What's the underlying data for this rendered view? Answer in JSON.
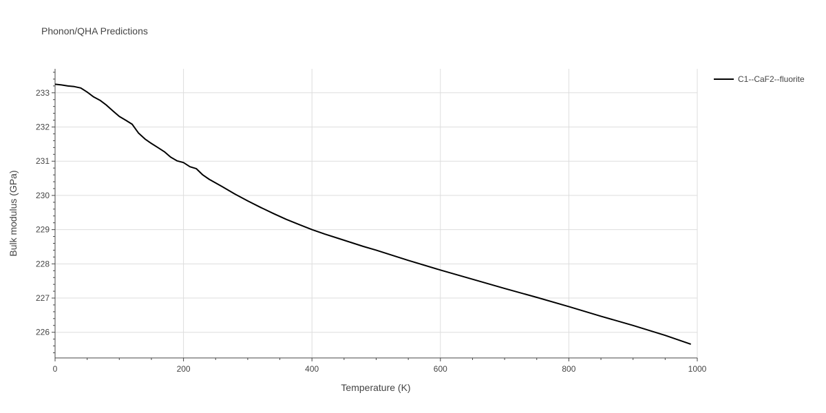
{
  "chart_data": {
    "type": "line",
    "title": "Phonon/QHA Predictions",
    "xlabel": "Temperature (K)",
    "ylabel": "Bulk modulus (GPa)",
    "xlim": [
      0,
      1000
    ],
    "ylim": [
      225.25,
      233.7
    ],
    "x_ticks": [
      0,
      200,
      400,
      600,
      800,
      1000
    ],
    "y_ticks": [
      226,
      227,
      228,
      229,
      230,
      231,
      232,
      233
    ],
    "grid": true,
    "legend_position": "top-right",
    "series": [
      {
        "name": "C1--CaF2--fluorite",
        "color": "#000000",
        "x": [
          0,
          10,
          20,
          30,
          40,
          50,
          60,
          70,
          80,
          90,
          100,
          110,
          120,
          130,
          140,
          150,
          160,
          170,
          180,
          190,
          200,
          210,
          220,
          230,
          240,
          260,
          280,
          300,
          320,
          340,
          360,
          380,
          400,
          420,
          440,
          460,
          480,
          500,
          550,
          600,
          650,
          700,
          750,
          800,
          850,
          900,
          950,
          990
        ],
        "y": [
          233.25,
          233.23,
          233.2,
          233.18,
          233.14,
          233.02,
          232.88,
          232.78,
          232.64,
          232.47,
          232.31,
          232.2,
          232.08,
          231.82,
          231.65,
          231.52,
          231.4,
          231.28,
          231.12,
          231.01,
          230.96,
          230.84,
          230.78,
          230.6,
          230.47,
          230.26,
          230.04,
          229.84,
          229.65,
          229.47,
          229.3,
          229.15,
          229.0,
          228.87,
          228.75,
          228.63,
          228.51,
          228.4,
          228.1,
          227.82,
          227.55,
          227.28,
          227.02,
          226.75,
          226.47,
          226.2,
          225.91,
          225.65
        ]
      }
    ]
  }
}
